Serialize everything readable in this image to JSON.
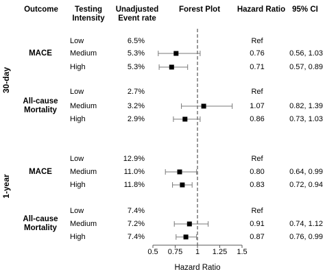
{
  "headers": {
    "outcome": "Outcome",
    "intensity_line1": "Testing",
    "intensity_line2": "Intensity",
    "rate_line1": "Unadjusted",
    "rate_line2": "Event rate",
    "forest": "Forest Plot",
    "hr": "Hazard Ratio",
    "ci": "95% CI"
  },
  "groups": [
    {
      "period": "30-day",
      "outcomes": [
        {
          "name_lines": [
            "MACE"
          ],
          "rows": [
            {
              "intensity": "Low",
              "rate": "6.5%",
              "hr_text": "Ref",
              "ci_text": ""
            },
            {
              "intensity": "Medium",
              "rate": "5.3%",
              "hr_text": "0.76",
              "ci_text": "0.56, 1.03"
            },
            {
              "intensity": "High",
              "rate": "5.3%",
              "hr_text": "0.71",
              "ci_text": "0.57, 0.89"
            }
          ]
        },
        {
          "name_lines": [
            "All-cause",
            "Mortality"
          ],
          "rows": [
            {
              "intensity": "Low",
              "rate": "2.7%",
              "hr_text": "Ref",
              "ci_text": ""
            },
            {
              "intensity": "Medium",
              "rate": "3.2%",
              "hr_text": "1.07",
              "ci_text": "0.82, 1.39"
            },
            {
              "intensity": "High",
              "rate": "2.9%",
              "hr_text": "0.86",
              "ci_text": "0.73, 1.03"
            }
          ]
        }
      ]
    },
    {
      "period": "1-year",
      "outcomes": [
        {
          "name_lines": [
            "MACE"
          ],
          "rows": [
            {
              "intensity": "Low",
              "rate": "12.9%",
              "hr_text": "Ref",
              "ci_text": ""
            },
            {
              "intensity": "Medium",
              "rate": "11.0%",
              "hr_text": "0.80",
              "ci_text": "0.64, 0.99"
            },
            {
              "intensity": "High",
              "rate": "11.8%",
              "hr_text": "0.83",
              "ci_text": "0.72, 0.94"
            }
          ]
        },
        {
          "name_lines": [
            "All-cause",
            "Mortality"
          ],
          "rows": [
            {
              "intensity": "Low",
              "rate": "7.4%",
              "hr_text": "Ref",
              "ci_text": ""
            },
            {
              "intensity": "Medium",
              "rate": "7.2%",
              "hr_text": "0.91",
              "ci_text": "0.74, 1.12"
            },
            {
              "intensity": "High",
              "rate": "7.4%",
              "hr_text": "0.87",
              "ci_text": "0.76, 0.99"
            }
          ]
        }
      ]
    }
  ],
  "chart_data": {
    "type": "forest",
    "xlabel": "Hazard Ratio",
    "xlim": [
      0.5,
      1.5
    ],
    "ticks": [
      "0.5",
      "0.75",
      "1",
      "1.25",
      "1.5"
    ],
    "reference_line": 1,
    "reference_line_style": "dashed",
    "points": [
      {
        "period": "30-day",
        "outcome": "MACE",
        "intensity": "Medium",
        "hr": 0.76,
        "lo": 0.56,
        "hi": 1.03
      },
      {
        "period": "30-day",
        "outcome": "MACE",
        "intensity": "High",
        "hr": 0.71,
        "lo": 0.57,
        "hi": 0.89
      },
      {
        "period": "30-day",
        "outcome": "All-cause Mortality",
        "intensity": "Medium",
        "hr": 1.07,
        "lo": 0.82,
        "hi": 1.39
      },
      {
        "period": "30-day",
        "outcome": "All-cause Mortality",
        "intensity": "High",
        "hr": 0.86,
        "lo": 0.73,
        "hi": 1.03
      },
      {
        "period": "1-year",
        "outcome": "MACE",
        "intensity": "Medium",
        "hr": 0.8,
        "lo": 0.64,
        "hi": 0.99
      },
      {
        "period": "1-year",
        "outcome": "MACE",
        "intensity": "High",
        "hr": 0.83,
        "lo": 0.72,
        "hi": 0.94
      },
      {
        "period": "1-year",
        "outcome": "All-cause Mortality",
        "intensity": "Medium",
        "hr": 0.91,
        "lo": 0.74,
        "hi": 1.12
      },
      {
        "period": "1-year",
        "outcome": "All-cause Mortality",
        "intensity": "High",
        "hr": 0.87,
        "lo": 0.76,
        "hi": 0.99
      }
    ]
  }
}
